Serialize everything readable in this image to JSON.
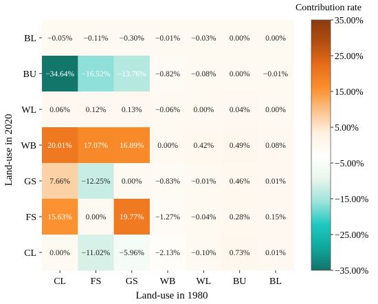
{
  "chart_data": {
    "type": "heatmap",
    "xlabel": "Land-use in 1980",
    "ylabel": "Land-use in 2020",
    "x_categories": [
      "CL",
      "FS",
      "GS",
      "WB",
      "WL",
      "BU",
      "BL"
    ],
    "y_categories": [
      "BL",
      "BU",
      "WL",
      "WB",
      "GS",
      "FS",
      "CL"
    ],
    "values": [
      [
        -0.05,
        -0.11,
        -0.3,
        -0.01,
        -0.03,
        0.0,
        0.0
      ],
      [
        -34.64,
        -16.52,
        -13.76,
        -0.82,
        -0.08,
        0.0,
        -0.01
      ],
      [
        0.06,
        0.12,
        0.13,
        -0.06,
        0.0,
        0.04,
        0.0
      ],
      [
        20.01,
        17.07,
        16.89,
        0.0,
        0.42,
        0.49,
        0.08
      ],
      [
        7.66,
        -12.25,
        0.0,
        -0.83,
        -0.01,
        0.46,
        0.01
      ],
      [
        15.63,
        0.0,
        19.77,
        -1.27,
        -0.04,
        0.28,
        0.15
      ],
      [
        0.0,
        -11.02,
        -5.96,
        -2.13,
        -0.1,
        0.73,
        0.01
      ]
    ],
    "cell_labels": [
      [
        "−0.05%",
        "−0.11%",
        "−0.30%",
        "−0.01%",
        "−0.03%",
        "0.00%",
        "0.00%"
      ],
      [
        "−34.64%",
        "−16.52%",
        "−13.76%",
        "−0.82%",
        "−0.08%",
        "0.00%",
        "−0.01%"
      ],
      [
        "0.06%",
        "0.12%",
        "0.13%",
        "−0.06%",
        "0.00%",
        "0.04%",
        "0.00%"
      ],
      [
        "20.01%",
        "17.07%",
        "16.89%",
        "0.00%",
        "0.42%",
        "0.49%",
        "0.08%"
      ],
      [
        "7.66%",
        "−12.25%",
        "0.00%",
        "−0.83%",
        "−0.01%",
        "0.46%",
        "0.01%"
      ],
      [
        "15.63%",
        "0.00%",
        "19.77%",
        "−1.27%",
        "−0.04%",
        "0.28%",
        "0.15%"
      ],
      [
        "0.00%",
        "−11.02%",
        "−5.96%",
        "−2.13%",
        "−0.10%",
        "0.73%",
        "0.01%"
      ]
    ],
    "colorbar": {
      "title": "Contribution rate",
      "range": [
        -35,
        35
      ],
      "ticks": [
        35,
        25,
        15,
        5,
        -5,
        -15,
        -25,
        -35
      ],
      "tick_labels": [
        "35.00%",
        "25.00%",
        "15.00%",
        "5.00%",
        "−5.00%",
        "−15.00%",
        "−25.00%",
        "−35.00%"
      ],
      "colors_top_to_bottom": [
        "#8b3a10",
        "#b34e10",
        "#e86d1a",
        "#fb8f2c",
        "#fcc38c",
        "#fdf2e2",
        "#ffffff",
        "#e9f5ec",
        "#9be3da",
        "#1dc8c0",
        "#0fa89c",
        "#137368"
      ]
    }
  }
}
